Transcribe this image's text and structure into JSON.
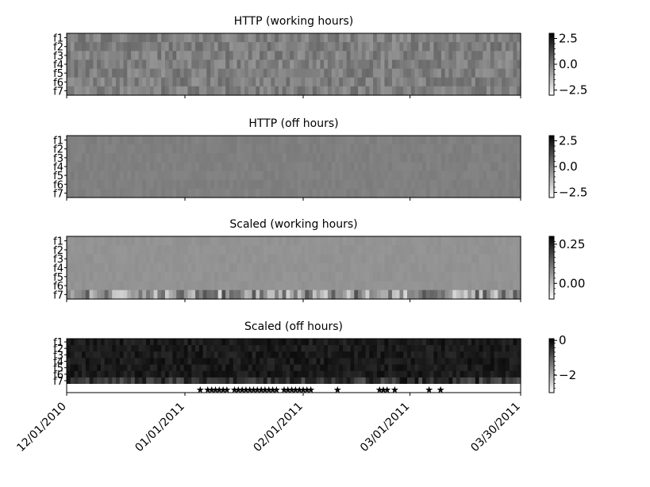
{
  "chart_data": [
    {
      "type": "heatmap",
      "title": "HTTP (working hours)",
      "rows": [
        "f1",
        "f2",
        "f3",
        "f4",
        "f5",
        "f6",
        "f7"
      ],
      "colorbar_ticks": [
        "2.5",
        "0.0",
        "−2.5"
      ],
      "colorbar_tick_values": [
        2.5,
        0.0,
        -2.5
      ],
      "vmin": -3.0,
      "vmax": 3.0,
      "colormap": [
        "#ffffff",
        "#000000"
      ],
      "approx_level": 0.02,
      "variation": 0.35
    },
    {
      "type": "heatmap",
      "title": "HTTP (off hours)",
      "rows": [
        "f1",
        "f2",
        "f3",
        "f4",
        "f5",
        "f6",
        "f7"
      ],
      "colorbar_ticks": [
        "2.5",
        "0.0",
        "−2.5"
      ],
      "colorbar_tick_values": [
        2.5,
        0.0,
        -2.5
      ],
      "vmin": -3.0,
      "vmax": 3.0,
      "colormap": [
        "#ffffff",
        "#000000"
      ],
      "approx_level": 0.0,
      "variation": 0.08
    },
    {
      "type": "heatmap",
      "title": "Scaled (working hours)",
      "rows": [
        "f1",
        "f2",
        "f3",
        "f4",
        "f5",
        "f6",
        "f7"
      ],
      "colorbar_ticks": [
        "0.25",
        "0.00"
      ],
      "colorbar_tick_values": [
        0.25,
        0.0
      ],
      "vmin": -0.1,
      "vmax": 0.3,
      "colormap": [
        "#ffffff",
        "#000000"
      ],
      "approx_level": 0.07,
      "variation": 0.06
    },
    {
      "type": "heatmap",
      "title": "Scaled (off hours)",
      "rows": [
        "f1",
        "f2",
        "f3",
        "f4",
        "f5",
        "f6",
        "f7"
      ],
      "colorbar_ticks": [
        "0",
        "−2"
      ],
      "colorbar_tick_values": [
        0,
        -2
      ],
      "vmin": -3.0,
      "vmax": 0.1,
      "colormap": [
        "#ffffff",
        "#000000"
      ],
      "approx_level": -0.05,
      "variation": 0.25,
      "marker_row": {
        "marker": "star",
        "dates": [
          "2011-01-05",
          "2011-01-07",
          "2011-01-08",
          "2011-01-09",
          "2011-01-10",
          "2011-01-11",
          "2011-01-12",
          "2011-01-14",
          "2011-01-15",
          "2011-01-16",
          "2011-01-17",
          "2011-01-18",
          "2011-01-19",
          "2011-01-20",
          "2011-01-21",
          "2011-01-22",
          "2011-01-23",
          "2011-01-24",
          "2011-01-25",
          "2011-01-27",
          "2011-01-28",
          "2011-01-29",
          "2011-01-30",
          "2011-01-31",
          "2011-02-01",
          "2011-02-02",
          "2011-02-03",
          "2011-02-10",
          "2011-02-21",
          "2011-02-22",
          "2011-02-23",
          "2011-02-25",
          "2011-03-06",
          "2011-03-09"
        ]
      }
    }
  ],
  "x_axis": {
    "start": "2010-12-01",
    "end": "2011-03-30",
    "tick_dates": [
      "2010-12-01",
      "2011-01-01",
      "2011-02-01",
      "2011-03-01",
      "2011-03-30"
    ],
    "tick_labels": [
      "12/01/2010",
      "01/01/2011",
      "02/01/2011",
      "03/01/2011",
      "03/30/2011"
    ],
    "label_rotation_deg": 45
  }
}
